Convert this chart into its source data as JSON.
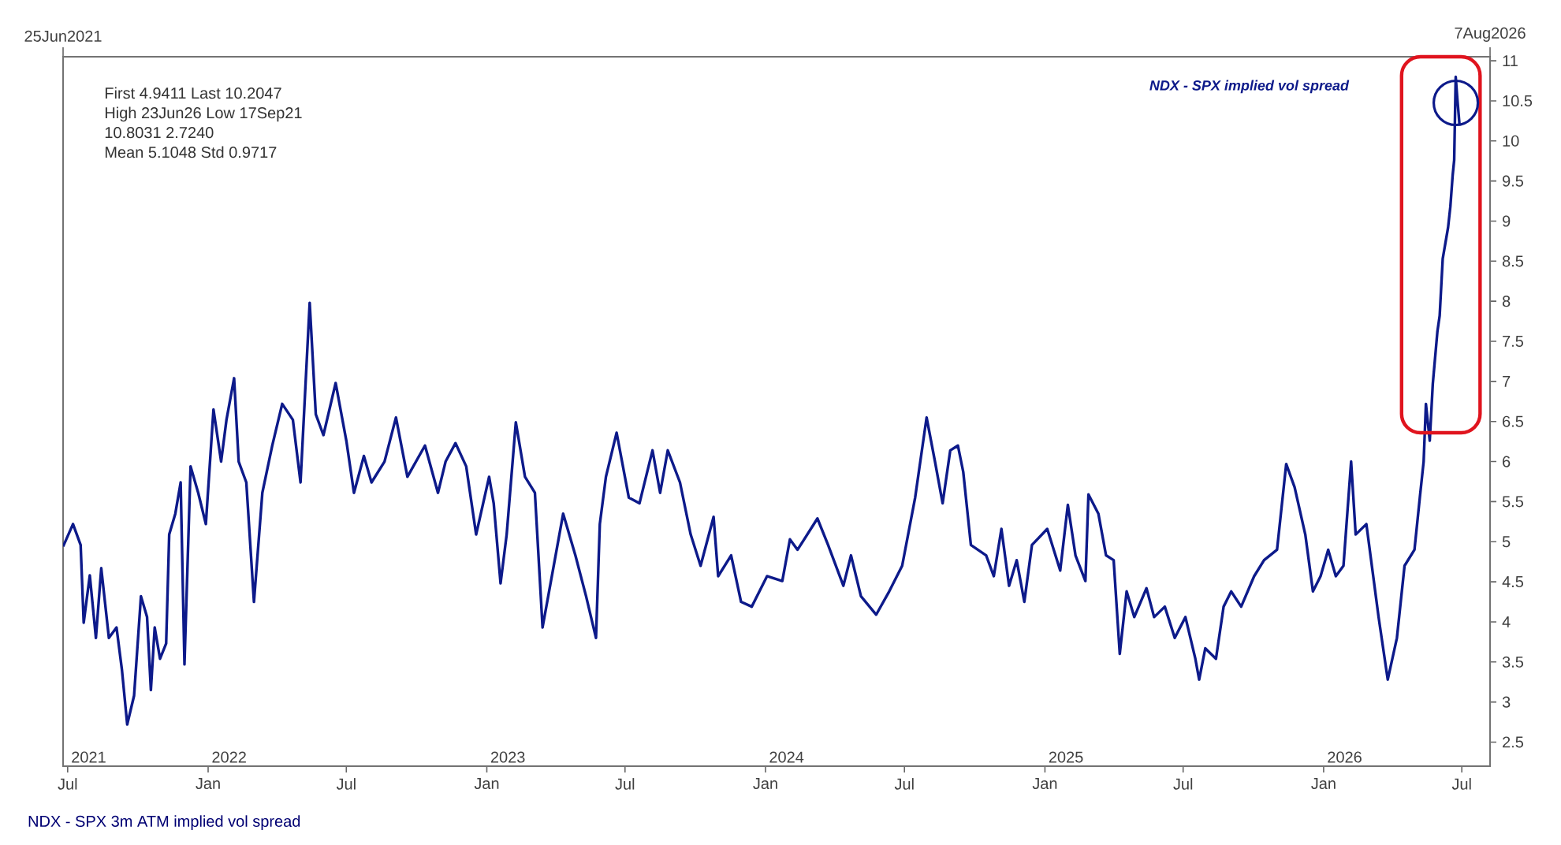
{
  "chart_data": {
    "type": "line",
    "x": [
      "2021-06-25",
      "2021-07-08",
      "2021-07-18",
      "2021-07-22",
      "2021-07-30",
      "2021-08-07",
      "2021-08-14",
      "2021-08-24",
      "2021-09-03",
      "2021-09-10",
      "2021-09-17",
      "2021-09-26",
      "2021-10-05",
      "2021-10-13",
      "2021-10-18",
      "2021-10-23",
      "2021-10-30",
      "2021-11-07",
      "2021-11-11",
      "2021-11-19",
      "2021-11-26",
      "2021-12-01",
      "2021-12-09",
      "2021-12-19",
      "2021-12-29",
      "2022-01-08",
      "2022-01-18",
      "2022-01-25",
      "2022-02-04",
      "2022-02-10",
      "2022-02-20",
      "2022-03-02",
      "2022-03-13",
      "2022-03-26",
      "2022-04-08",
      "2022-04-22",
      "2022-05-02",
      "2022-05-14",
      "2022-05-22",
      "2022-06-01",
      "2022-06-17",
      "2022-07-01",
      "2022-07-11",
      "2022-07-24",
      "2022-08-03",
      "2022-08-20",
      "2022-09-04",
      "2022-09-19",
      "2022-10-12",
      "2022-10-29",
      "2022-11-08",
      "2022-11-21",
      "2022-12-05",
      "2022-12-18",
      "2023-01-04",
      "2023-01-10",
      "2023-01-19",
      "2023-01-27",
      "2023-02-08",
      "2023-02-20",
      "2023-03-05",
      "2023-03-15",
      "2023-04-11",
      "2023-04-27",
      "2023-05-11",
      "2023-05-24",
      "2023-05-29",
      "2023-06-06",
      "2023-06-20",
      "2023-07-06",
      "2023-07-20",
      "2023-08-06",
      "2023-08-16",
      "2023-08-26",
      "2023-09-11",
      "2023-09-25",
      "2023-10-08",
      "2023-10-25",
      "2023-10-31",
      "2023-11-17",
      "2023-11-30",
      "2023-12-14",
      "2024-01-03",
      "2024-01-23",
      "2024-02-02",
      "2024-02-12",
      "2024-03-09",
      "2024-03-23",
      "2024-04-12",
      "2024-04-22",
      "2024-05-05",
      "2024-05-25",
      "2024-06-11",
      "2024-06-28",
      "2024-07-15",
      "2024-07-30",
      "2024-08-10",
      "2024-08-20",
      "2024-08-30",
      "2024-09-09",
      "2024-09-16",
      "2024-09-26",
      "2024-10-16",
      "2024-10-26",
      "2024-11-05",
      "2024-11-15",
      "2024-11-25",
      "2024-12-05",
      "2024-12-15",
      "2025-01-04",
      "2025-01-21",
      "2025-01-31",
      "2025-02-10",
      "2025-02-23",
      "2025-02-27",
      "2025-03-12",
      "2025-03-22",
      "2025-04-01",
      "2025-04-09",
      "2025-04-18",
      "2025-04-28",
      "2025-05-14",
      "2025-05-24",
      "2025-06-07",
      "2025-06-20",
      "2025-07-04",
      "2025-07-17",
      "2025-07-22",
      "2025-07-30",
      "2025-08-13",
      "2025-08-23",
      "2025-09-02",
      "2025-09-15",
      "2025-10-02",
      "2025-10-15",
      "2025-11-01",
      "2025-11-13",
      "2025-11-24",
      "2025-12-08",
      "2025-12-18",
      "2025-12-28",
      "2026-01-07",
      "2026-01-17",
      "2026-01-27",
      "2026-02-06",
      "2026-02-12",
      "2026-02-26",
      "2026-03-14",
      "2026-03-26",
      "2026-04-07",
      "2026-04-17",
      "2026-04-30",
      "2026-05-07",
      "2026-05-12",
      "2026-05-15",
      "2026-05-20",
      "2026-05-24",
      "2026-05-30",
      "2026-06-02",
      "2026-06-06",
      "2026-06-13",
      "2026-06-16",
      "2026-06-19",
      "2026-06-21",
      "2026-06-23",
      "2026-06-25",
      "2026-06-28"
    ],
    "series": [
      {
        "name": "NDX - SPX implied vol spread",
        "color": "#0d1a8a",
        "values": [
          4.94,
          5.22,
          4.96,
          3.99,
          4.58,
          3.8,
          4.67,
          3.8,
          3.93,
          3.41,
          2.72,
          3.08,
          4.32,
          4.06,
          3.15,
          3.93,
          3.54,
          3.73,
          5.09,
          5.35,
          5.74,
          3.47,
          5.94,
          5.61,
          5.22,
          6.65,
          6.0,
          6.52,
          7.04,
          6.0,
          5.74,
          4.25,
          5.61,
          6.2,
          6.72,
          6.52,
          5.74,
          7.98,
          6.59,
          6.33,
          6.98,
          6.26,
          5.61,
          6.07,
          5.74,
          6.0,
          6.55,
          5.81,
          6.2,
          5.61,
          6.0,
          6.23,
          5.94,
          5.09,
          5.81,
          5.48,
          4.48,
          5.09,
          6.49,
          5.81,
          5.61,
          3.93,
          5.35,
          4.83,
          4.32,
          3.8,
          5.22,
          5.81,
          6.36,
          5.55,
          5.48,
          6.14,
          5.61,
          6.14,
          5.74,
          5.09,
          4.7,
          5.31,
          4.57,
          4.83,
          4.25,
          4.19,
          4.57,
          4.51,
          5.03,
          4.9,
          5.29,
          4.96,
          4.45,
          4.83,
          4.32,
          4.09,
          4.38,
          4.7,
          5.55,
          6.55,
          6.0,
          5.48,
          6.14,
          6.2,
          5.87,
          4.96,
          4.83,
          4.57,
          5.16,
          4.45,
          4.77,
          4.25,
          4.96,
          5.16,
          4.64,
          5.46,
          4.83,
          4.51,
          5.59,
          5.35,
          4.83,
          4.77,
          3.6,
          4.38,
          4.06,
          4.42,
          4.06,
          4.19,
          3.8,
          4.06,
          3.54,
          3.28,
          3.67,
          3.54,
          4.19,
          4.38,
          4.19,
          4.57,
          4.77,
          4.9,
          5.97,
          5.68,
          5.09,
          4.38,
          4.57,
          4.9,
          4.57,
          4.7,
          6.0,
          5.09,
          5.22,
          4.06,
          3.28,
          3.8,
          4.7,
          4.9,
          5.55,
          6.0,
          6.72,
          6.26,
          6.97,
          7.62,
          7.82,
          8.53,
          8.92,
          9.18,
          9.57,
          9.76,
          10.8,
          10.54,
          10.2
        ]
      }
    ],
    "xlim": [
      "2021-06-25",
      "2026-08-07"
    ],
    "xticks": [
      {
        "value": "2021-07-01",
        "label": "Jul"
      },
      {
        "value": "2022-01-01",
        "label": "Jan"
      },
      {
        "value": "2022-07-01",
        "label": "Jul"
      },
      {
        "value": "2023-01-01",
        "label": "Jan"
      },
      {
        "value": "2023-07-01",
        "label": "Jul"
      },
      {
        "value": "2024-01-01",
        "label": "Jan"
      },
      {
        "value": "2024-07-01",
        "label": "Jul"
      },
      {
        "value": "2025-01-01",
        "label": "Jan"
      },
      {
        "value": "2025-07-01",
        "label": "Jul"
      },
      {
        "value": "2026-01-01",
        "label": "Jan"
      },
      {
        "value": "2026-07-01",
        "label": "Jul"
      }
    ],
    "x2lim": [
      "2021-06-25",
      "2026-08-07"
    ],
    "x2ticks": [
      {
        "value": "2021-06-25",
        "label": "25Jun2021"
      },
      {
        "value": "2026-08-07",
        "label": "7Aug2026"
      }
    ],
    "ylim": [
      2.2,
      11.05
    ],
    "yticks": [
      2.5,
      3,
      3.5,
      4,
      4.5,
      5,
      5.5,
      6,
      6.5,
      7,
      7.5,
      8,
      8.5,
      9,
      9.5,
      10,
      10.5,
      11
    ],
    "legend": "top right",
    "annotations": [
      "First  4.9411   Last  10.2047",
      "High 23Jun26   Low 17Sep21",
      "10.8031   2.7240",
      "Mean  5.1048   Std  0.9717",
      "NDX - SPX 3m ATM implied vol spread",
      "2021",
      "2022",
      "2023",
      "2024",
      "2025",
      "2026"
    ]
  }
}
